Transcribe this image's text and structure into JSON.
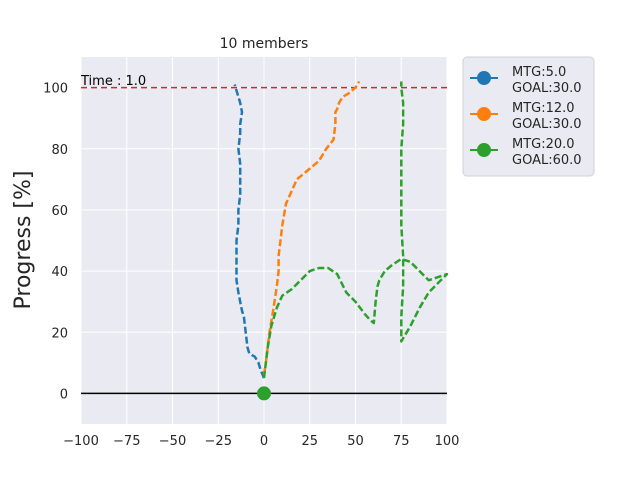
{
  "chart_data": {
    "type": "line",
    "title": "10 members",
    "xlabel": "",
    "ylabel": "Progress [%]",
    "xlim": [
      -100,
      100
    ],
    "ylim": [
      -10,
      110
    ],
    "xticks": [
      -100,
      -75,
      -50,
      -25,
      0,
      25,
      50,
      75,
      100
    ],
    "xtick_labels": [
      "−100",
      "−75",
      "−50",
      "−25",
      "0",
      "25",
      "50",
      "75",
      "100"
    ],
    "yticks": [
      0,
      20,
      40,
      60,
      80,
      100
    ],
    "ytick_labels": [
      "0",
      "20",
      "40",
      "60",
      "80",
      "100"
    ],
    "grid": true,
    "legend_placement": "outside-top-right",
    "annotation": "Time : 1.0",
    "goal_line": {
      "y": 100,
      "color": "#d62728",
      "style": "dashed"
    },
    "zero_line": {
      "y": 0,
      "color": "#000000"
    },
    "origin_marker": {
      "x": 0,
      "y": 0,
      "color": "#2ca02c"
    },
    "colors": {
      "background": "#eaeaf2",
      "grid": "#ffffff"
    },
    "series": [
      {
        "label_line1": "MTG:5.0",
        "label_line2": "GOAL:30.0",
        "color": "#1f77b4",
        "x": [
          0,
          -2,
          -3,
          -5,
          -8,
          -9,
          -10,
          -11,
          -12,
          -13,
          -14,
          -15,
          -15,
          -15,
          -14,
          -14,
          -13,
          -13,
          -13,
          -14,
          -13,
          -13,
          -12,
          -13,
          -14,
          -15,
          -16
        ],
        "y": [
          5,
          8,
          10,
          12,
          13,
          15,
          20,
          25,
          27,
          30,
          33,
          37,
          42,
          50,
          55,
          60,
          65,
          70,
          75,
          80,
          85,
          88,
          92,
          95,
          97,
          99,
          101
        ]
      },
      {
        "label_line1": "MTG:12.0",
        "label_line2": "GOAL:30.0",
        "color": "#ff7f0e",
        "x": [
          0,
          1,
          2,
          3,
          5,
          7,
          8,
          8,
          9,
          10,
          12,
          15,
          18,
          22,
          26,
          30,
          34,
          38,
          39,
          39,
          40,
          41,
          43,
          46,
          50,
          52
        ],
        "y": [
          6,
          10,
          15,
          20,
          27,
          35,
          40,
          45,
          50,
          55,
          62,
          66,
          70,
          72,
          74,
          76,
          80,
          83,
          88,
          92,
          93,
          95,
          97,
          98,
          100,
          102
        ]
      },
      {
        "label_line1": "MTG:20.0",
        "label_line2": "GOAL:60.0",
        "color": "#2ca02c",
        "x": [
          0,
          2,
          4,
          7,
          10,
          15,
          20,
          25,
          30,
          35,
          40,
          45,
          50,
          55,
          58,
          60,
          61,
          62,
          63,
          66,
          70,
          75,
          80,
          85,
          90,
          95,
          100,
          95,
          90,
          85,
          80,
          75,
          75,
          76,
          76,
          75,
          75,
          75,
          75,
          76,
          76,
          75,
          75
        ],
        "y": [
          5,
          15,
          22,
          28,
          32,
          34,
          37,
          40,
          41,
          41,
          39,
          33,
          30,
          26,
          24,
          23,
          30,
          35,
          37,
          40,
          42,
          44,
          43,
          40,
          37,
          38,
          39,
          36,
          33,
          28,
          22,
          17,
          25,
          35,
          45,
          55,
          60,
          70,
          80,
          88,
          95,
          100,
          102
        ]
      }
    ]
  }
}
